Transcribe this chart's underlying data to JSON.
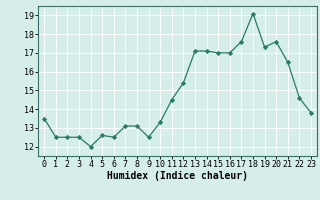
{
  "x": [
    0,
    1,
    2,
    3,
    4,
    5,
    6,
    7,
    8,
    9,
    10,
    11,
    12,
    13,
    14,
    15,
    16,
    17,
    18,
    19,
    20,
    21,
    22,
    23
  ],
  "y": [
    13.5,
    12.5,
    12.5,
    12.5,
    12.0,
    12.6,
    12.5,
    13.1,
    13.1,
    12.5,
    13.3,
    14.5,
    15.4,
    17.1,
    17.1,
    17.0,
    17.0,
    17.6,
    19.1,
    17.3,
    17.6,
    16.5,
    14.6,
    13.8
  ],
  "xlabel": "Humidex (Indice chaleur)",
  "ylim": [
    11.5,
    19.5
  ],
  "xlim": [
    -0.5,
    23.5
  ],
  "yticks": [
    12,
    13,
    14,
    15,
    16,
    17,
    18,
    19
  ],
  "xticks": [
    0,
    1,
    2,
    3,
    4,
    5,
    6,
    7,
    8,
    9,
    10,
    11,
    12,
    13,
    14,
    15,
    16,
    17,
    18,
    19,
    20,
    21,
    22,
    23
  ],
  "line_color": "#2a7a6a",
  "marker_color": "#2a7a6a",
  "bg_color": "#d6eeea",
  "grid_color": "#ffffff",
  "axis_bg": "#d6eeea",
  "tick_fontsize": 6.0,
  "xlabel_fontsize": 7.0
}
